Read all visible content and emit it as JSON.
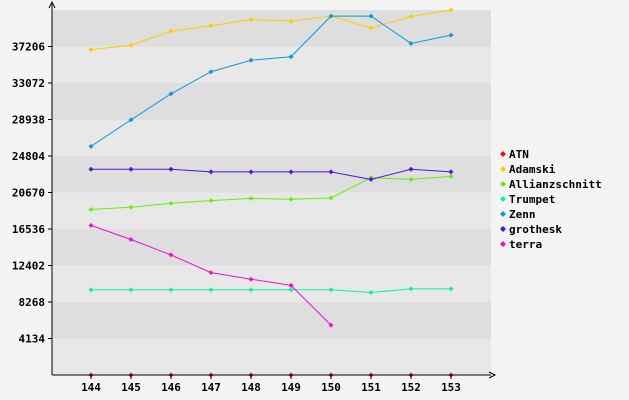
{
  "chart_data": {
    "type": "line",
    "title": "",
    "xlabel": "",
    "ylabel": "",
    "x": [
      144,
      145,
      146,
      147,
      148,
      149,
      150,
      151,
      152,
      153
    ],
    "y_ticks": [
      4134,
      8268,
      12402,
      16536,
      20670,
      24804,
      28938,
      33072,
      37206
    ],
    "ylim": [
      0,
      41340
    ],
    "grid": true,
    "legend_position": "right",
    "series": [
      {
        "name": "ATN",
        "color": "#ee1111",
        "values": [
          0,
          0,
          0,
          0,
          0,
          0,
          0,
          0,
          0,
          0
        ]
      },
      {
        "name": "Adamski",
        "color": "#ffcc00",
        "values": [
          36850,
          37350,
          38950,
          39550,
          40250,
          40100,
          40650,
          39300,
          40600,
          41350
        ]
      },
      {
        "name": "Allianzschnitt",
        "color": "#66ee11",
        "values": [
          18750,
          19000,
          19450,
          19750,
          20000,
          19900,
          20050,
          22350,
          22150,
          22500
        ]
      },
      {
        "name": "Trumpet",
        "color": "#11eeaa",
        "values": [
          9650,
          9650,
          9650,
          9650,
          9650,
          9650,
          9650,
          9350,
          9750,
          9750
        ]
      },
      {
        "name": "Zenn",
        "color": "#1199dd",
        "values": [
          25900,
          28900,
          31850,
          34350,
          35650,
          36050,
          40650,
          40650,
          37550,
          38500
        ]
      },
      {
        "name": "grothesk",
        "color": "#5511dd",
        "values": [
          23300,
          23300,
          23300,
          23000,
          23000,
          23000,
          23000,
          22150,
          23300,
          23000
        ]
      },
      {
        "name": "terra",
        "color": "#ee11cc",
        "values": [
          16950,
          15350,
          13600,
          11600,
          10850,
          10150,
          5650,
          null,
          null,
          null
        ]
      }
    ]
  }
}
